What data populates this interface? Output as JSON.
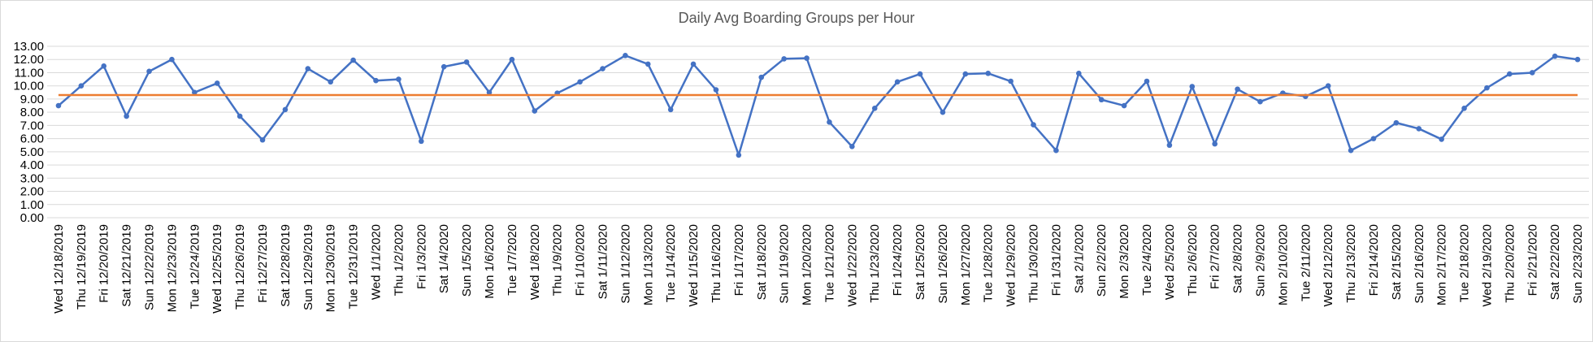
{
  "chart_data": {
    "type": "line",
    "title": "Daily Avg Boarding Groups per Hour",
    "xlabel": "",
    "ylabel": "",
    "ylim": [
      0,
      13
    ],
    "yticks": [
      "0.00",
      "1.00",
      "2.00",
      "3.00",
      "4.00",
      "5.00",
      "6.00",
      "7.00",
      "8.00",
      "9.00",
      "10.00",
      "11.00",
      "12.00",
      "13.00"
    ],
    "grid": true,
    "legend": "none",
    "categories": [
      "Wed 12/18/2019",
      "Thu 12/19/2019",
      "Fri 12/20/2019",
      "Sat 12/21/2019",
      "Sun 12/22/2019",
      "Mon 12/23/2019",
      "Tue 12/24/2019",
      "Wed 12/25/2019",
      "Thu 12/26/2019",
      "Fri 12/27/2019",
      "Sat 12/28/2019",
      "Sun 12/29/2019",
      "Mon 12/30/2019",
      "Tue 12/31/2019",
      "Wed 1/1/2020",
      "Thu 1/2/2020",
      "Fri 1/3/2020",
      "Sat 1/4/2020",
      "Sun 1/5/2020",
      "Mon 1/6/2020",
      "Tue 1/7/2020",
      "Wed 1/8/2020",
      "Thu 1/9/2020",
      "Fri 1/10/2020",
      "Sat 1/11/2020",
      "Sun 1/12/2020",
      "Mon 1/13/2020",
      "Tue 1/14/2020",
      "Wed 1/15/2020",
      "Thu 1/16/2020",
      "Fri 1/17/2020",
      "Sat 1/18/2020",
      "Sun 1/19/2020",
      "Mon 1/20/2020",
      "Tue 1/21/2020",
      "Wed 1/22/2020",
      "Thu 1/23/2020",
      "Fri 1/24/2020",
      "Sat 1/25/2020",
      "Sun 1/26/2020",
      "Mon 1/27/2020",
      "Tue 1/28/2020",
      "Wed 1/29/2020",
      "Thu 1/30/2020",
      "Fri 1/31/2020",
      "Sat 2/1/2020",
      "Sun 2/2/2020",
      "Mon 2/3/2020",
      "Tue 2/4/2020",
      "Wed 2/5/2020",
      "Thu 2/6/2020",
      "Fri 2/7/2020",
      "Sat 2/8/2020",
      "Sun 2/9/2020",
      "Mon 2/10/2020",
      "Tue 2/11/2020",
      "Wed 2/12/2020",
      "Thu 2/13/2020",
      "Fri 2/14/2020",
      "Sat 2/15/2020",
      "Sun 2/16/2020",
      "Mon 2/17/2020",
      "Tue 2/18/2020",
      "Wed 2/19/2020",
      "Thu 2/20/2020",
      "Fri 2/21/2020",
      "Sat 2/22/2020",
      "Sun 2/23/2020"
    ],
    "series": [
      {
        "name": "",
        "color": "#4472c4",
        "values": [
          8.5,
          10.0,
          11.5,
          7.7,
          11.1,
          12.0,
          9.5,
          10.2,
          7.7,
          5.9,
          8.2,
          11.3,
          10.3,
          11.95,
          10.4,
          10.5,
          5.8,
          11.45,
          11.8,
          9.5,
          12.0,
          8.1,
          9.45,
          10.3,
          11.3,
          12.3,
          11.65,
          8.2,
          11.65,
          9.7,
          4.75,
          10.65,
          12.05,
          12.1,
          7.25,
          5.4,
          8.3,
          10.3,
          10.9,
          8.0,
          10.9,
          10.95,
          10.35,
          7.05,
          5.1,
          10.95,
          8.95,
          8.5,
          10.35,
          5.5,
          9.95,
          5.6,
          9.75,
          8.8,
          9.45,
          9.2,
          10.0,
          5.1,
          6.0,
          7.2,
          6.75,
          5.95,
          8.3,
          9.85,
          10.9,
          11.0,
          12.25,
          12.0
        ]
      },
      {
        "name": "",
        "color": "#ed7d31",
        "type": "constant",
        "value": 9.3
      }
    ]
  }
}
